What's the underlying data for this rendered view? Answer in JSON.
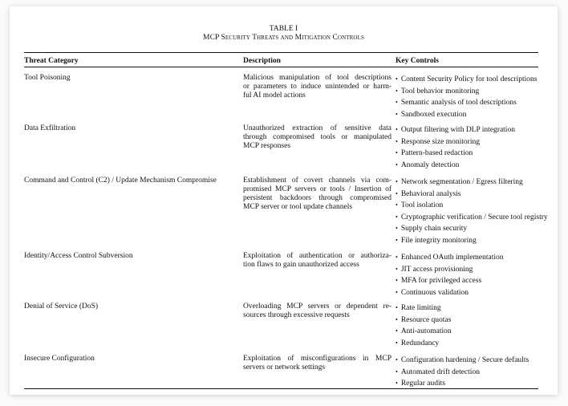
{
  "table": {
    "label": "TABLE I",
    "caption": "MCP Security Threats and Mitigation Controls",
    "headers": [
      "Threat Category",
      "Description",
      "Key Controls"
    ],
    "rows": [
      {
        "category": "Tool Poisoning",
        "description": [
          "Malicious manipulation of tool descriptions",
          "or parameters to induce unintended or harm-",
          "ful AI model actions"
        ],
        "controls": [
          "Content Security Policy for tool descriptions",
          "Tool behavior monitoring",
          "Semantic analysis of tool descriptions",
          "Sandboxed execution"
        ]
      },
      {
        "category": "Data Exfiltration",
        "description": [
          "Unauthorized extraction of sensitive data",
          "through compromised tools or manipulated",
          "MCP responses"
        ],
        "controls": [
          "Output filtering with DLP integration",
          "Response size monitoring",
          "Pattern-based redaction",
          "Anomaly detection"
        ]
      },
      {
        "category": "Command and Control (C2) / Update Mechanism Compromise",
        "description": [
          "Establishment of covert channels via com-",
          "promised MCP servers or tools / Insertion of",
          "persistent backdoors through compromised",
          "MCP server or tool update channels"
        ],
        "controls": [
          "Network segmentation / Egress filtering",
          "Behavioral analysis",
          "Tool isolation",
          "Cryptographic verification / Secure tool registry",
          "Supply chain security",
          "File integrity monitoring"
        ]
      },
      {
        "category": "Identity/Access Control Subversion",
        "description": [
          "Exploitation of authentication or authoriza-",
          "tion flaws to gain unauthorized access"
        ],
        "controls": [
          "Enhanced OAuth implementation",
          "JIT access provisioning",
          "MFA for privileged access",
          "Continuous validation"
        ]
      },
      {
        "category": "Denial of Service (DoS)",
        "description": [
          "Overloading MCP servers or dependent re-",
          "sources through excessive requests"
        ],
        "controls": [
          "Rate limiting",
          "Resource quotas",
          "Anti-automation",
          "Redundancy"
        ]
      },
      {
        "category": "Insecure Configuration",
        "description": [
          "Exploitation of misconfigurations in MCP",
          "servers or network settings"
        ],
        "controls": [
          "Configuration hardening / Secure defaults",
          "Automated drift detection",
          "Regular audits"
        ]
      }
    ]
  }
}
